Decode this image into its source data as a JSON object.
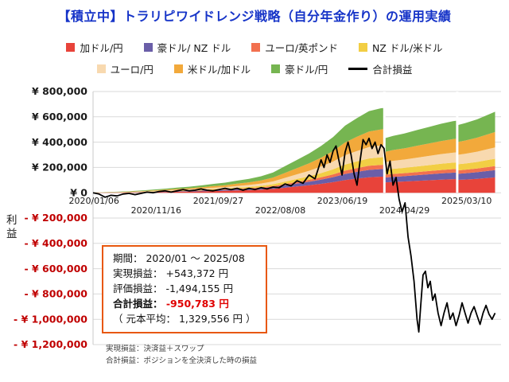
{
  "title": {
    "text": "【積立中】トラリピワイドレンジ戦略（自分年金作り）の運用実績",
    "color": "#1634C8"
  },
  "legend": {
    "rows": [
      [
        {
          "label": "加ドル/円",
          "color": "#E8433A",
          "swatch": "box"
        },
        {
          "label": "豪ドル/ NZ ドル",
          "color": "#6A5EA8",
          "swatch": "box"
        },
        {
          "label": "ユーロ/英ポンド",
          "color": "#F2704F",
          "swatch": "box"
        },
        {
          "label": "NZ ドル/米ドル",
          "color": "#F2CE44",
          "swatch": "box"
        }
      ],
      [
        {
          "label": "ユーロ/円",
          "color": "#F8D9AF",
          "swatch": "box"
        },
        {
          "label": "米ドル/加ドル",
          "color": "#F2A93B",
          "swatch": "box"
        },
        {
          "label": "豪ドル/円",
          "color": "#76B551",
          "swatch": "box"
        },
        {
          "label": "合計損益",
          "color": "#000000",
          "swatch": "line"
        }
      ]
    ]
  },
  "chart_data": {
    "type": "area",
    "subtype": "stacked-area-with-total-line",
    "title": "【積立中】トラリピワイドレンジ戦略（自分年金作り）の運用実績",
    "unit": "thousand JPY",
    "x_unit": "months since 2020-01",
    "x_domain": [
      0,
      68
    ],
    "y_domain": [
      -1200,
      800
    ],
    "ylabel": "利益",
    "grid": true,
    "y_ticks": [
      {
        "v": 800,
        "label": "¥ 800,000",
        "color": "#1a1a1a"
      },
      {
        "v": 600,
        "label": "¥ 600,000",
        "color": "#1a1a1a"
      },
      {
        "v": 400,
        "label": "¥ 400,000",
        "color": "#1a1a1a"
      },
      {
        "v": 200,
        "label": "¥ 200,000",
        "color": "#1a1a1a"
      },
      {
        "v": 0,
        "label": "¥ 0",
        "color": "#1a1a1a"
      },
      {
        "v": -200,
        "label": "- ¥ 200,000",
        "color": "#C00000"
      },
      {
        "v": -400,
        "label": "- ¥ 400,000",
        "color": "#C00000"
      },
      {
        "v": -600,
        "label": "- ¥ 600,000",
        "color": "#C00000"
      },
      {
        "v": -800,
        "label": "- ¥ 800,000",
        "color": "#C00000"
      },
      {
        "v": -1000,
        "label": "- ¥ 1,000,000",
        "color": "#C00000"
      },
      {
        "v": -1200,
        "label": "- ¥ 1,200,000",
        "color": "#C00000"
      }
    ],
    "x_ticks": [
      {
        "m": 0.16,
        "label": "2020/01/06"
      },
      {
        "m": 10.51,
        "label": "2020/11/16"
      },
      {
        "m": 20.86,
        "label": "2021/09/27"
      },
      {
        "m": 31.21,
        "label": "2022/08/08"
      },
      {
        "m": 41.56,
        "label": "2023/06/19"
      },
      {
        "m": 51.91,
        "label": "2024/04/29"
      },
      {
        "m": 62.26,
        "label": "2025/03/10"
      }
    ],
    "gaps": [
      48.55,
      60.7
    ],
    "areas": {
      "x": [
        0,
        2,
        4,
        6,
        8,
        10,
        12,
        14,
        16,
        18,
        20,
        22,
        24,
        26,
        28,
        30,
        32,
        34,
        36,
        38,
        40,
        42,
        44,
        46,
        48,
        48.4,
        48.6,
        50,
        52,
        54,
        56,
        58,
        60,
        60.6,
        60.8,
        62,
        64,
        66,
        67
      ],
      "series": [
        {
          "name": "加ドル/円",
          "color": "#E8433A",
          "values": [
            0.4,
            1.0,
            1.5,
            2.3,
            3.4,
            4.8,
            6.1,
            7.6,
            9.1,
            11.0,
            13.3,
            15.2,
            18.1,
            20.9,
            24.7,
            30.4,
            39.9,
            49.4,
            58.9,
            70.3,
            83.6,
            100.7,
            112.1,
            122.6,
            126.9,
            127.3,
            81.7,
            85.5,
            89.3,
            94.1,
            98.8,
            103.6,
            107.4,
            108.3,
            101.7,
            104.5,
            110.2,
            117.8,
            121.6
          ]
        },
        {
          "name": "豪ドル/ NZ ドル",
          "color": "#6A5EA8",
          "values": [
            0.2,
            0.5,
            0.7,
            1.1,
            1.6,
            2.3,
            2.9,
            3.6,
            4.3,
            5.2,
            6.3,
            7.2,
            8.6,
            9.9,
            11.7,
            14.4,
            18.9,
            23.4,
            27.9,
            33.3,
            39.6,
            47.7,
            53.1,
            58.1,
            60.1,
            60.3,
            38.7,
            40.5,
            42.3,
            44.6,
            46.8,
            49.1,
            50.9,
            51.3,
            48.2,
            49.5,
            52.2,
            55.8,
            57.6
          ]
        },
        {
          "name": "ユーロ/英ポンド",
          "color": "#F2704F",
          "values": [
            0.1,
            0.3,
            0.4,
            0.6,
            0.9,
            1.3,
            1.6,
            2.0,
            2.4,
            2.9,
            3.5,
            4.0,
            4.8,
            5.5,
            6.5,
            8.0,
            10.5,
            13.0,
            15.5,
            18.5,
            22.0,
            26.5,
            29.5,
            32.3,
            33.4,
            33.5,
            21.5,
            22.5,
            23.5,
            24.8,
            26.0,
            27.3,
            28.3,
            28.5,
            26.8,
            27.5,
            29.0,
            31.0,
            32.0
          ]
        },
        {
          "name": "NZ ドル/米ドル",
          "color": "#F2CE44",
          "values": [
            0.2,
            0.5,
            0.7,
            1.1,
            1.6,
            2.3,
            2.9,
            3.6,
            4.3,
            5.2,
            6.3,
            7.2,
            8.6,
            9.9,
            11.7,
            14.4,
            18.9,
            23.4,
            27.9,
            33.3,
            39.6,
            47.7,
            53.1,
            58.1,
            60.1,
            60.3,
            38.7,
            40.5,
            42.3,
            44.6,
            46.8,
            49.1,
            50.9,
            51.3,
            48.2,
            49.5,
            52.2,
            55.8,
            57.6
          ]
        },
        {
          "name": "ユーロ/円",
          "color": "#F8D9AF",
          "values": [
            0.3,
            0.7,
            1.1,
            1.7,
            2.5,
            3.5,
            4.5,
            5.6,
            6.7,
            8.1,
            9.8,
            11.2,
            13.3,
            15.4,
            18.2,
            22.4,
            29.4,
            36.4,
            43.4,
            51.8,
            61.6,
            74.2,
            82.6,
            90.3,
            93.5,
            93.8,
            60.2,
            63.0,
            65.8,
            69.3,
            72.8,
            76.3,
            79.1,
            79.8,
            74.9,
            77.0,
            81.2,
            86.8,
            89.6
          ]
        },
        {
          "name": "米ドル/加ドル",
          "color": "#F2A93B",
          "values": [
            0.4,
            1.0,
            1.5,
            2.3,
            3.4,
            4.8,
            6.1,
            7.6,
            9.1,
            11.0,
            13.3,
            15.2,
            18.1,
            20.9,
            24.7,
            30.4,
            39.9,
            49.4,
            58.9,
            70.3,
            83.6,
            100.7,
            112.1,
            122.6,
            126.9,
            127.3,
            81.7,
            85.5,
            89.3,
            94.1,
            98.8,
            103.6,
            107.4,
            108.3,
            101.7,
            104.5,
            110.2,
            117.8,
            121.6
          ]
        },
        {
          "name": "豪ドル/円",
          "color": "#76B551",
          "values": [
            0.5,
            1.3,
            2.0,
            3.0,
            4.5,
            6.3,
            8.0,
            10.0,
            12.0,
            14.5,
            17.5,
            20.0,
            23.8,
            27.5,
            32.5,
            40.0,
            52.5,
            65.0,
            77.5,
            92.5,
            110.0,
            132.5,
            147.5,
            161.3,
            167.0,
            167.5,
            107.5,
            112.5,
            117.5,
            123.8,
            130.0,
            136.3,
            141.3,
            142.5,
            133.8,
            137.5,
            145.0,
            155.0,
            160.0
          ]
        }
      ]
    },
    "line": {
      "name": "合計損益",
      "color": "#000000",
      "points": [
        [
          0,
          0
        ],
        [
          1,
          -10
        ],
        [
          2,
          -35
        ],
        [
          3,
          -20
        ],
        [
          4,
          -25
        ],
        [
          5,
          -10
        ],
        [
          6,
          -5
        ],
        [
          7,
          -15
        ],
        [
          8,
          -5
        ],
        [
          9,
          5
        ],
        [
          10,
          0
        ],
        [
          11,
          10
        ],
        [
          12,
          15
        ],
        [
          13,
          5
        ],
        [
          14,
          15
        ],
        [
          15,
          25
        ],
        [
          16,
          15
        ],
        [
          17,
          20
        ],
        [
          18,
          30
        ],
        [
          19,
          20
        ],
        [
          20,
          15
        ],
        [
          21,
          25
        ],
        [
          22,
          35
        ],
        [
          23,
          25
        ],
        [
          24,
          35
        ],
        [
          25,
          20
        ],
        [
          26,
          35
        ],
        [
          27,
          25
        ],
        [
          28,
          40
        ],
        [
          29,
          30
        ],
        [
          30,
          45
        ],
        [
          31,
          40
        ],
        [
          32,
          70
        ],
        [
          33,
          55
        ],
        [
          34,
          95
        ],
        [
          35,
          75
        ],
        [
          36,
          140
        ],
        [
          37,
          110
        ],
        [
          38,
          260
        ],
        [
          38.5,
          200
        ],
        [
          39,
          300
        ],
        [
          39.5,
          240
        ],
        [
          40,
          330
        ],
        [
          40.5,
          370
        ],
        [
          41,
          250
        ],
        [
          41.5,
          140
        ],
        [
          42,
          320
        ],
        [
          42.5,
          400
        ],
        [
          43,
          300
        ],
        [
          43.5,
          150
        ],
        [
          44,
          60
        ],
        [
          44.5,
          250
        ],
        [
          45,
          420
        ],
        [
          45.5,
          380
        ],
        [
          46,
          430
        ],
        [
          46.5,
          350
        ],
        [
          47,
          400
        ],
        [
          47.5,
          310
        ],
        [
          48,
          380
        ],
        [
          48.5,
          350
        ],
        [
          49,
          150
        ],
        [
          49.5,
          250
        ],
        [
          50,
          60
        ],
        [
          50.5,
          120
        ],
        [
          51,
          -50
        ],
        [
          51.5,
          -150
        ],
        [
          52,
          -80
        ],
        [
          52.5,
          -350
        ],
        [
          53,
          -500
        ],
        [
          53.5,
          -700
        ],
        [
          54,
          -1000
        ],
        [
          54.3,
          -1100
        ],
        [
          54.6,
          -900
        ],
        [
          55,
          -650
        ],
        [
          55.4,
          -620
        ],
        [
          55.8,
          -750
        ],
        [
          56.2,
          -700
        ],
        [
          56.6,
          -850
        ],
        [
          57,
          -800
        ],
        [
          57.5,
          -950
        ],
        [
          58,
          -1050
        ],
        [
          58.5,
          -950
        ],
        [
          59,
          -870
        ],
        [
          59.5,
          -1000
        ],
        [
          60,
          -950
        ],
        [
          60.5,
          -1050
        ],
        [
          61,
          -970
        ],
        [
          61.5,
          -870
        ],
        [
          62,
          -950
        ],
        [
          62.5,
          -1030
        ],
        [
          63,
          -950
        ],
        [
          63.5,
          -900
        ],
        [
          64,
          -970
        ],
        [
          64.5,
          -1040
        ],
        [
          65,
          -950
        ],
        [
          65.5,
          -890
        ],
        [
          66,
          -960
        ],
        [
          66.5,
          -1000
        ],
        [
          67,
          -951
        ]
      ]
    }
  },
  "summary_box": {
    "border_color": "#E8580F",
    "period": "期間： 2020/01 ～ 2025/08",
    "realized": "実現損益： +543,372 円",
    "valuation": "評価損益： -1,494,155 円",
    "total_label": "合計損益： ",
    "total_value": "-950,783 円",
    "principal": "（ 元本平均： 1,329,556 円 ）"
  },
  "footnotes": [
    "実現損益：決済益＋スワップ",
    "合計損益：ポジションを全決済した時の損益"
  ]
}
